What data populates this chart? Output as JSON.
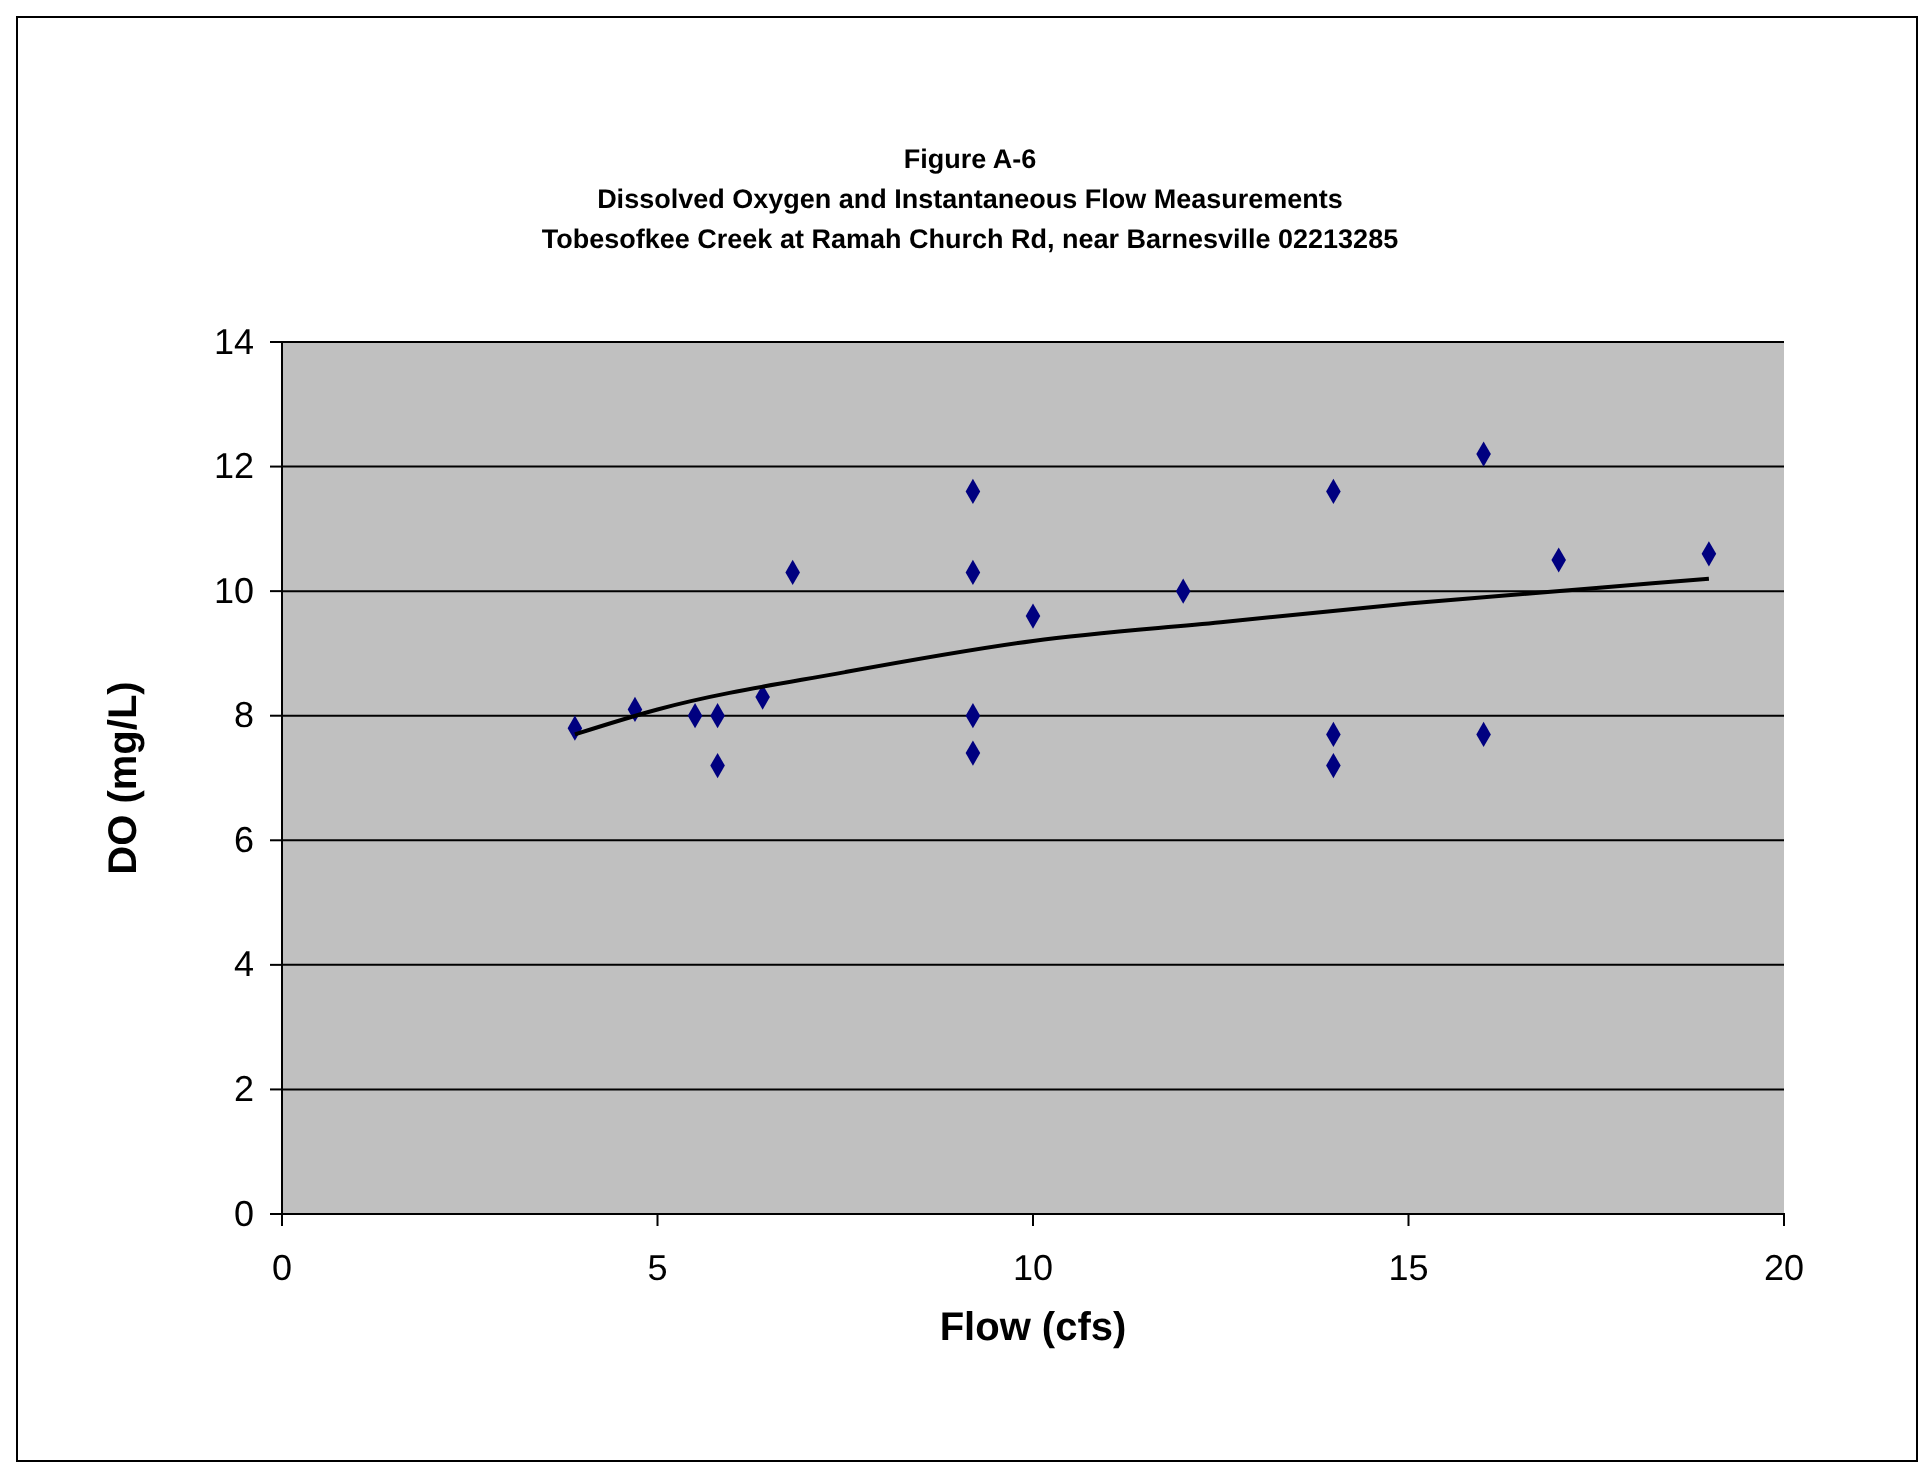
{
  "chart_data": {
    "type": "scatter",
    "title": "Figure A-6\nDissolved Oxygen and Instantaneous Flow Measurements\nTobesofkee Creek at Ramah Church Rd, near Barnesville 02213285",
    "xlabel": "Flow (cfs)",
    "ylabel": "DO (mg/L)",
    "xlim": [
      0,
      20
    ],
    "xticks": [
      0,
      5,
      10,
      15,
      20
    ],
    "ylim": [
      0,
      14
    ],
    "yticks": [
      0,
      2,
      4,
      6,
      8,
      10,
      12,
      14
    ],
    "grid": "y",
    "series": [
      {
        "marker": "diamond",
        "color": "#000080",
        "x": [
          3.9,
          4.7,
          5.5,
          5.8,
          5.8,
          6.4,
          6.8,
          9.2,
          9.2,
          9.2,
          9.2,
          10,
          12,
          14,
          14,
          14,
          16,
          16,
          17,
          19
        ],
        "values": [
          7.8,
          8.1,
          8.0,
          8.0,
          7.2,
          8.3,
          10.3,
          11.6,
          10.3,
          8.0,
          7.4,
          9.6,
          10.0,
          11.6,
          7.7,
          7.2,
          12.2,
          7.7,
          10.5,
          10.6
        ]
      },
      {
        "type": "line",
        "marker": "none",
        "line_style": "solid",
        "color": "#000000",
        "x": [
          3.9,
          5,
          7.5,
          10,
          12.5,
          15,
          17.5,
          19
        ],
        "values": [
          7.7,
          8.1,
          8.7,
          9.2,
          9.5,
          9.8,
          10.05,
          10.2
        ]
      }
    ]
  }
}
